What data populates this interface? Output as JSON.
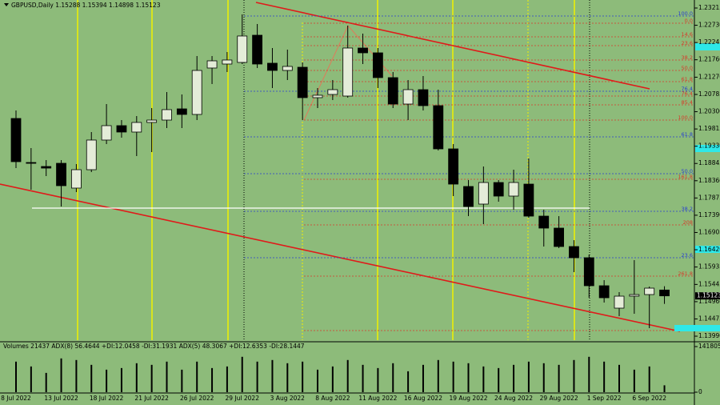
{
  "chart_data": [
    {
      "type": "candlestick",
      "title": "GBPUSD,Daily  1.15288 1.15394 1.14898 1.15123",
      "categories": [
        "8 Jul 2022",
        null,
        null,
        "13 Jul 2022",
        null,
        null,
        "18 Jul 2022",
        null,
        null,
        "21 Jul 2022",
        null,
        null,
        "26 Jul 2022",
        null,
        null,
        "29 Jul 2022",
        null,
        null,
        "3 Aug 2022",
        null,
        null,
        "8 Aug 2022",
        null,
        null,
        "11 Aug 2022",
        null,
        null,
        "16 Aug 2022",
        null,
        null,
        "19 Aug 2022",
        null,
        null,
        "24 Aug 2022",
        null,
        null,
        "29 Aug 2022",
        null,
        null,
        "1 Sep 2022",
        null,
        null,
        "6 Sep 2022",
        null
      ],
      "open": [
        1.2011,
        1.18872,
        1.1876,
        1.1885,
        1.18153,
        1.1867,
        1.19503,
        1.19908,
        1.19728,
        1.19998,
        1.20065,
        1.2038,
        1.20223,
        1.21528,
        1.2164,
        1.21685,
        1.2245,
        1.21663,
        1.2146,
        1.2155,
        1.20695,
        1.20785,
        1.2074,
        1.2209,
        1.21955,
        1.21258,
        1.20515,
        1.2092,
        1.2047,
        1.19255,
        1.18198,
        1.17703,
        1.1831,
        1.17928,
        1.18265,
        1.17365,
        1.17028,
        1.1651,
        1.16195,
        1.15408,
        1.14778,
        1.15115,
        1.1516,
        1.15288
      ],
      "high": [
        1.20335,
        1.19278,
        1.1894,
        1.1894,
        1.18828,
        1.19728,
        1.20515,
        1.20065,
        1.20178,
        1.20403,
        1.20853,
        1.20785,
        1.21865,
        1.21865,
        1.21978,
        1.23035,
        1.22765,
        1.2209,
        1.22045,
        1.21685,
        1.20965,
        1.2119,
        1.2272,
        1.22495,
        1.2209,
        1.21415,
        1.2119,
        1.21303,
        1.2092,
        1.1939,
        1.18378,
        1.1876,
        1.18378,
        1.1867,
        1.18985,
        1.17545,
        1.17365,
        1.1669,
        1.16285,
        1.15565,
        1.15228,
        1.16128,
        1.15385,
        1.15394
      ],
      "low": [
        1.18715,
        1.18108,
        1.1849,
        1.17635,
        1.1804,
        1.18603,
        1.1939,
        1.1957,
        1.19053,
        1.19165,
        1.1984,
        1.1984,
        1.20065,
        1.21078,
        1.21415,
        1.2164,
        1.21528,
        1.20965,
        1.2119,
        1.20065,
        1.20403,
        1.20628,
        1.20695,
        1.2164,
        1.20965,
        1.20403,
        1.20065,
        1.20335,
        1.1921,
        1.17928,
        1.17365,
        1.1714,
        1.1777,
        1.17545,
        1.1732,
        1.1651,
        1.16465,
        1.1579,
        1.1507,
        1.14935,
        1.14553,
        1.1462,
        1.14215,
        1.14898
      ],
      "close": [
        1.18895,
        1.1885,
        1.18715,
        1.1822,
        1.1867,
        1.19503,
        1.19908,
        1.19728,
        1.19998,
        1.20065,
        1.20358,
        1.20223,
        1.2146,
        1.2173,
        1.21753,
        1.22428,
        1.2164,
        1.2146,
        1.21573,
        1.20695,
        1.20763,
        1.2092,
        1.2209,
        1.21955,
        1.21258,
        1.20515,
        1.2092,
        1.2047,
        1.19255,
        1.18265,
        1.17635,
        1.1831,
        1.17928,
        1.1831,
        1.17365,
        1.17028,
        1.1651,
        1.16195,
        1.15408,
        1.1507,
        1.15115,
        1.1516,
        1.1534,
        1.15123
      ],
      "ylim": [
        1.13878,
        1.2344
      ],
      "yticks": [
        {
          "value": 1.23215,
          "label": "1.23215"
        },
        {
          "value": 1.2273,
          "label": "1.22730"
        },
        {
          "value": 1.22245,
          "label": "1.22245"
        },
        {
          "value": 1.2176,
          "label": "1.21760"
        },
        {
          "value": 1.2127,
          "label": "1.21270"
        },
        {
          "value": 1.20785,
          "label": "1.20785"
        },
        {
          "value": 1.203,
          "label": "1.20300"
        },
        {
          "value": 1.19815,
          "label": "1.19815"
        },
        {
          "value": 1.1933,
          "label": "1.19330"
        },
        {
          "value": 1.18845,
          "label": "1.18845"
        },
        {
          "value": 1.1836,
          "label": "1.18360"
        },
        {
          "value": 1.17875,
          "label": "1.17875"
        },
        {
          "value": 1.1739,
          "label": "1.17390"
        },
        {
          "value": 1.16905,
          "label": "1.16905"
        },
        {
          "value": 1.1642,
          "label": "1.16420"
        },
        {
          "value": 1.15935,
          "label": "1.15935"
        },
        {
          "value": 1.15445,
          "label": "1.15445"
        },
        {
          "value": 1.1496,
          "label": "1.14960"
        },
        {
          "value": 1.14475,
          "label": "1.14475"
        },
        {
          "value": 1.1399,
          "label": "1.13990"
        }
      ],
      "colors": {
        "up": "#e4ecd8",
        "down": "#000000",
        "wick": "#000000"
      },
      "annotations": [
        {
          "label": "100.0",
          "value": 1.2299,
          "color": "#2a3fd0"
        },
        {
          "label": "0.0",
          "value": 1.22788,
          "color": "#d83a2a"
        },
        {
          "label": "14.6",
          "value": 1.22405,
          "color": "#d83a2a"
        },
        {
          "label": "23.6",
          "value": 1.22158,
          "color": "#d83a2a"
        },
        {
          "label": "38.2",
          "value": 1.21753,
          "color": "#d83a2a"
        },
        {
          "label": "50.0",
          "value": 1.2146,
          "color": "#d83a2a"
        },
        {
          "label": "61.8",
          "value": 1.21145,
          "color": "#d83a2a"
        },
        {
          "label": "76.4",
          "value": 1.20875,
          "color": "#2a3fd0"
        },
        {
          "label": "76.4",
          "value": 1.2074,
          "color": "#d83a2a"
        },
        {
          "label": "85.4",
          "value": 1.20493,
          "color": "#d83a2a"
        },
        {
          "label": "100.0",
          "value": 1.20065,
          "color": "#d83a2a"
        },
        {
          "label": "61.8",
          "value": 1.19593,
          "color": "#2a3fd0"
        },
        {
          "label": "50.0",
          "value": 1.18558,
          "color": "#2a3fd0"
        },
        {
          "label": "161.8",
          "value": 1.184,
          "color": "#d83a2a"
        },
        {
          "label": "38.2",
          "value": 1.175,
          "color": "#2a3fd0"
        },
        {
          "label": "208",
          "value": 1.17118,
          "color": "#d83a2a"
        },
        {
          "label": "23.6",
          "value": 1.16195,
          "color": "#2a3fd0"
        },
        {
          "label": "261.8",
          "value": 1.15678,
          "color": "#d83a2a"
        },
        {
          "label": "100.0",
          "value": 1.14148,
          "color": "#d83a2a"
        }
      ]
    },
    {
      "type": "bar",
      "title": "Volumes 21437  ADX(8) 56.4644 +DI:12.0458 -DI:31.1931  ADX(5) 48.3067 +DI:12.6353 -DI:28.1447",
      "values": [
        95000,
        80000,
        60000,
        105000,
        100000,
        85000,
        70000,
        75000,
        90000,
        85000,
        95000,
        70000,
        95000,
        75000,
        80000,
        110000,
        95000,
        100000,
        90000,
        95000,
        70000,
        80000,
        100000,
        85000,
        75000,
        90000,
        65000,
        85000,
        100000,
        95000,
        90000,
        80000,
        75000,
        85000,
        95000,
        90000,
        85000,
        100000,
        110000,
        95000,
        85000,
        70000,
        80000,
        21437
      ],
      "color": "#000000",
      "ylim": [
        0,
        141805
      ],
      "yticks": [
        141805,
        0
      ]
    }
  ]
}
